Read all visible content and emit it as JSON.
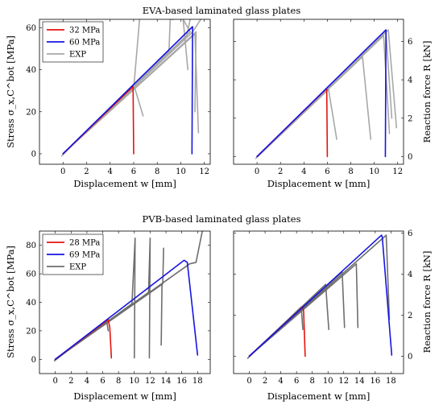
{
  "chart_data": [
    {
      "type": "line",
      "panel": "EVA-left",
      "title": "EVA-based laminated glass plates",
      "xlabel": "Displacement w [mm]",
      "ylabel": "Stress σ_x,C^bot [MPa]",
      "xlim": [
        -2,
        12.5
      ],
      "ylim": [
        -5,
        64
      ],
      "xticks": [
        0,
        2,
        4,
        6,
        8,
        10,
        12
      ],
      "yticks": [
        0,
        20,
        40,
        60
      ],
      "legend": {
        "position": "top-left",
        "entries": [
          "32 MPa",
          "60 MPa",
          "EXP"
        ]
      },
      "series": [
        {
          "name": "32 MPa",
          "color": "#e3140f",
          "x": [
            0,
            5.95,
            5.95,
            6.0
          ],
          "y": [
            0,
            32,
            31,
            0
          ]
        },
        {
          "name": "60 MPa",
          "color": "#1515e0",
          "x": [
            0,
            11.0,
            11.0,
            10.95
          ],
          "y": [
            0,
            60.5,
            59,
            0
          ]
        },
        {
          "name": "EXP",
          "color": "#a8a8a8",
          "traces": [
            {
              "x": [
                -0.1,
                6.0,
                6.8
              ],
              "y": [
                -1,
                33,
                18
              ]
            },
            {
              "x": [
                0,
                6.0,
                6.5
              ],
              "y": [
                0,
                31,
                64
              ]
            },
            {
              "x": [
                0,
                9.0,
                9.1,
                9.4
              ],
              "y": [
                0,
                49,
                64,
                64
              ]
            },
            {
              "x": [
                0,
                10.5,
                10.8
              ],
              "y": [
                0,
                56,
                64
              ]
            },
            {
              "x": [
                0,
                10.8,
                10.2,
                10.6
              ],
              "y": [
                0,
                58,
                64,
                40
              ]
            },
            {
              "x": [
                0,
                11.0,
                11.7
              ],
              "y": [
                0,
                58,
                64
              ]
            },
            {
              "x": [
                0,
                11.2,
                11.5
              ],
              "y": [
                0,
                57,
                10
              ]
            },
            {
              "x": [
                0,
                11.3,
                11.2
              ],
              "y": [
                0,
                58,
                20
              ]
            }
          ]
        }
      ]
    },
    {
      "type": "line",
      "panel": "EVA-right",
      "xlabel": "Displacement w [mm]",
      "ylabel": "Reaction force R [kN]",
      "xlim": [
        -2,
        12.5
      ],
      "ylim": [
        -0.4,
        7.15
      ],
      "xticks": [
        0,
        2,
        4,
        6,
        8,
        10,
        12
      ],
      "yticks": [
        0,
        2,
        4,
        6
      ],
      "series": [
        {
          "name": "32 MPa",
          "color": "#e3140f",
          "x": [
            0,
            5.95,
            5.95,
            6.0
          ],
          "y": [
            0,
            3.55,
            3.4,
            0
          ]
        },
        {
          "name": "60 MPa",
          "color": "#1515e0",
          "x": [
            0,
            11.0,
            11.0,
            10.95
          ],
          "y": [
            0,
            6.6,
            6.4,
            0
          ]
        },
        {
          "name": "EXP",
          "color": "#a8a8a8",
          "traces": [
            {
              "x": [
                -0.1,
                6.1,
                6.8
              ],
              "y": [
                -0.1,
                3.5,
                0.9
              ]
            },
            {
              "x": [
                0,
                9.0,
                9.7
              ],
              "y": [
                0,
                5.2,
                0.9
              ]
            },
            {
              "x": [
                0,
                10.8,
                11.3
              ],
              "y": [
                0,
                6.3,
                1.2
              ]
            },
            {
              "x": [
                0,
                11.0,
                11.5
              ],
              "y": [
                0,
                6.5,
                2.0
              ]
            },
            {
              "x": [
                0,
                11.2,
                11.9
              ],
              "y": [
                0,
                6.6,
                1.5
              ]
            }
          ]
        }
      ]
    },
    {
      "type": "line",
      "panel": "PVB-left",
      "title": "PVB-based laminated glass plates",
      "xlabel": "Displacement w [mm]",
      "ylabel": "Stress σ_x,C^bot [MPa]",
      "xlim": [
        -2,
        19.6
      ],
      "ylim": [
        -10,
        90
      ],
      "xticks": [
        0,
        2,
        4,
        6,
        8,
        10,
        12,
        14,
        16,
        18
      ],
      "yticks": [
        0,
        20,
        40,
        60,
        80
      ],
      "legend": {
        "position": "top-left",
        "entries": [
          "28 MPa",
          "69 MPa",
          "EXP"
        ]
      },
      "series": [
        {
          "name": "28 MPa",
          "color": "#e3140f",
          "x": [
            0,
            6.7,
            6.9,
            7.1
          ],
          "y": [
            0,
            28,
            22,
            1
          ]
        },
        {
          "name": "69 MPa",
          "color": "#1515e0",
          "x": [
            0,
            16.3,
            16.7,
            18.0
          ],
          "y": [
            0,
            69.5,
            68,
            3
          ]
        },
        {
          "name": "EXP",
          "color": "#6e6e6e",
          "traces": [
            {
              "x": [
                -0.1,
                6.5,
                6.7
              ],
              "y": [
                -1,
                27,
                20
              ]
            },
            {
              "x": [
                0,
                9.7,
                10.1,
                10.0
              ],
              "y": [
                0,
                39,
                85,
                1
              ]
            },
            {
              "x": [
                0,
                11.8,
                12.0,
                11.9
              ],
              "y": [
                0,
                47,
                85,
                1
              ]
            },
            {
              "x": [
                0,
                13.6,
                13.7
              ],
              "y": [
                0,
                53,
                78
              ]
            },
            {
              "x": [
                0,
                13.5,
                13.4
              ],
              "y": [
                0,
                53,
                10
              ]
            },
            {
              "x": [
                0,
                17.0,
                17.8,
                18.6
              ],
              "y": [
                0,
                67,
                68,
                90
              ]
            }
          ]
        }
      ]
    },
    {
      "type": "line",
      "panel": "PVB-right",
      "xlabel": "Displacement w [mm]",
      "ylabel": "Reaction force R [kN]",
      "xlim": [
        -2,
        19.6
      ],
      "ylim": [
        -0.85,
        6.1
      ],
      "xticks": [
        0,
        2,
        4,
        6,
        8,
        10,
        12,
        14,
        16,
        18
      ],
      "yticks": [
        0,
        2,
        4,
        6
      ],
      "series": [
        {
          "name": "28 MPa",
          "color": "#e3140f",
          "x": [
            0,
            6.8,
            6.9,
            7.1
          ],
          "y": [
            0,
            2.4,
            2.2,
            0
          ]
        },
        {
          "name": "69 MPa",
          "color": "#1515e0",
          "x": [
            0,
            16.8,
            16.9,
            18.1
          ],
          "y": [
            0,
            5.9,
            5.8,
            0.05
          ]
        },
        {
          "name": "EXP",
          "color": "#6e6e6e",
          "traces": [
            {
              "x": [
                -0.2,
                6.6,
                6.8
              ],
              "y": [
                -0.1,
                2.4,
                1.3
              ]
            },
            {
              "x": [
                0,
                9.7,
                10.1
              ],
              "y": [
                0,
                3.5,
                1.3
              ]
            },
            {
              "x": [
                0,
                11.8,
                12.1
              ],
              "y": [
                0,
                4.1,
                1.4
              ]
            },
            {
              "x": [
                0,
                13.6,
                13.8
              ],
              "y": [
                0,
                4.5,
                1.4
              ]
            },
            {
              "x": [
                0,
                17.4,
                17.8
              ],
              "y": [
                0,
                5.9,
                1.8
              ]
            }
          ]
        }
      ]
    }
  ]
}
